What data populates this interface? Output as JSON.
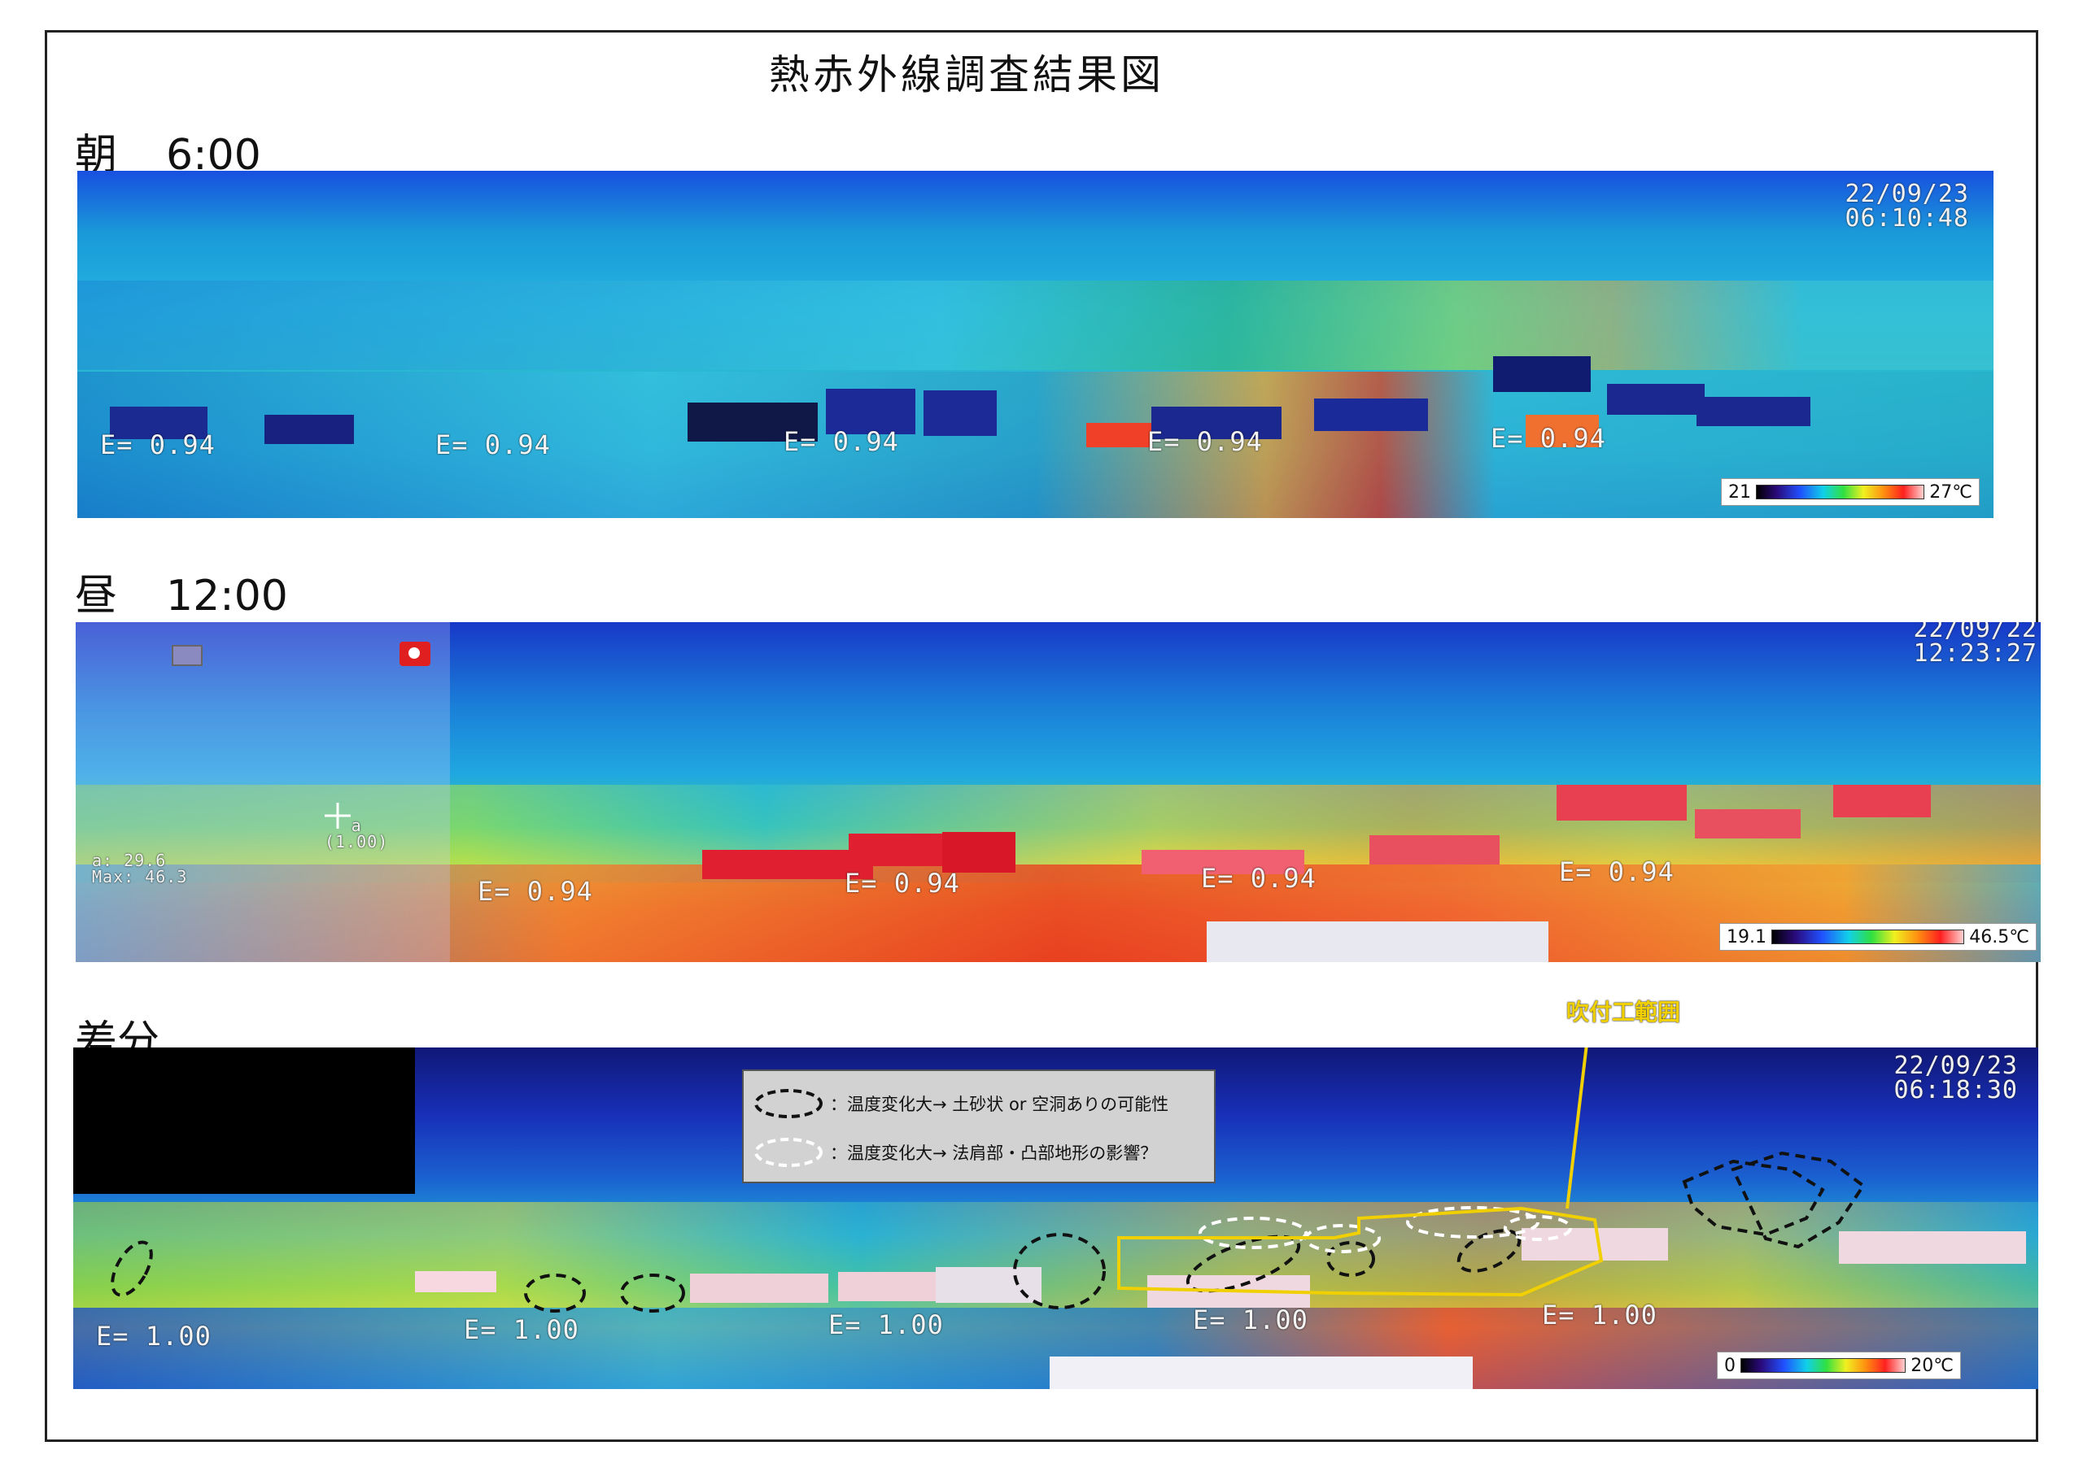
{
  "title": "熱赤外線調査結果図",
  "sections": {
    "morning": {
      "label": "朝",
      "time": "6:00",
      "timestamp_date": "22/09/23",
      "timestamp_time": "06:10:48",
      "emissivity": [
        "E= 0.94",
        "E= 0.94",
        "E= 0.94",
        "E= 0.94",
        "E= 0.94"
      ],
      "scale_min": "21",
      "scale_max": "27℃"
    },
    "noon": {
      "label": "昼",
      "time": "12:00",
      "timestamp_date": "22/09/22",
      "timestamp_time": "12:23:27",
      "emissivity": [
        "E= 0.94",
        "E= 0.94",
        "E= 0.94",
        "E= 0.94"
      ],
      "scale_min": "19.1",
      "scale_max": "46.5℃",
      "cursor_label": "(1.00)",
      "cursor_tag": "a",
      "readout_line1": "a: 29.6",
      "readout_line2": "Max: 46.3"
    },
    "difference": {
      "label": "差分",
      "timestamp_date": "22/09/23",
      "timestamp_time": "06:18:30",
      "emissivity": [
        "E= 1.00",
        "E= 1.00",
        "E= 1.00",
        "E= 1.00",
        "E= 1.00"
      ],
      "scale_min": "0",
      "scale_max": "20℃"
    }
  },
  "legend": {
    "black_dashed": "：温度変化大→ 土砂状 or 空洞ありの可能性",
    "white_dashed": "：温度変化大→ 法肩部・凸部地形の影響？"
  },
  "annotation": {
    "spray_area": "吹付工範囲"
  },
  "colors": {
    "frame": "#222222",
    "annotation_yellow": "#f0d000",
    "legend_bg": "#d2d2d2"
  }
}
